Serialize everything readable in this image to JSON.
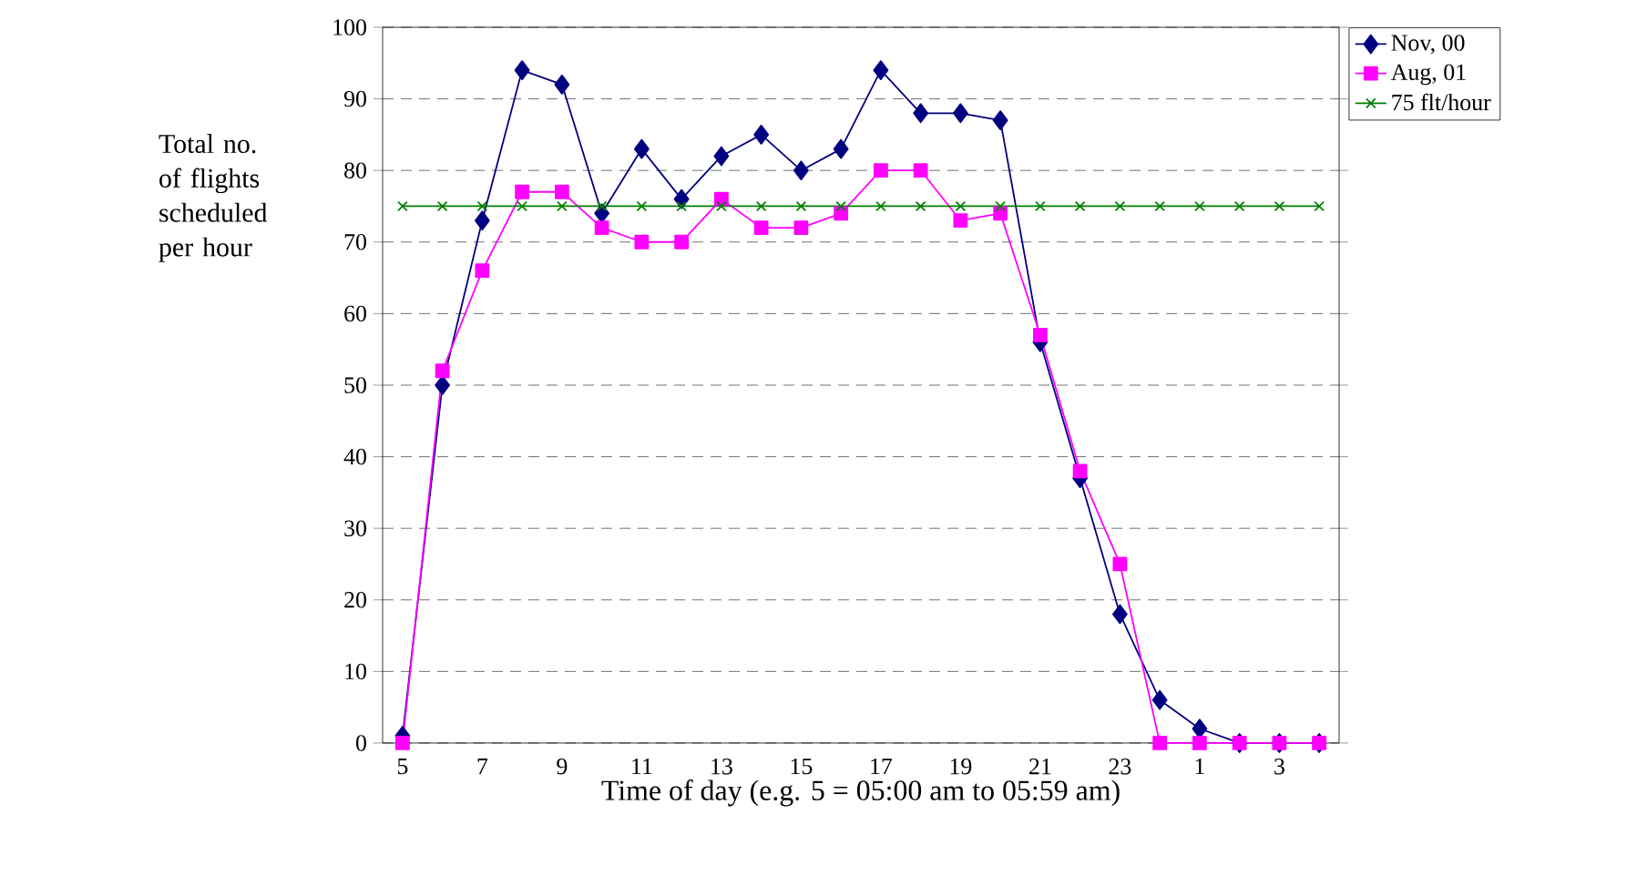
{
  "chart_data": {
    "type": "line",
    "xlabel": "Time of day (e.g. 5 = 05:00 am to 05:59 am)",
    "ylabel": "Total no. of flights scheduled per hour",
    "categories": [
      "5",
      null,
      "7",
      null,
      "9",
      null,
      "11",
      null,
      "13",
      null,
      "15",
      null,
      "17",
      null,
      "19",
      null,
      "21",
      null,
      "23",
      null,
      "1",
      null,
      "3",
      null
    ],
    "series": [
      {
        "name": "Nov, 00",
        "color": "#000080",
        "marker": "diamond",
        "values": [
          1,
          50,
          73,
          94,
          92,
          74,
          83,
          76,
          82,
          85,
          80,
          83,
          94,
          88,
          88,
          87,
          56,
          37,
          18,
          6,
          2,
          0,
          0,
          0
        ]
      },
      {
        "name": "Aug, 01",
        "color": "#ff00ff",
        "marker": "square",
        "values": [
          0,
          52,
          66,
          77,
          77,
          72,
          70,
          70,
          76,
          72,
          72,
          74,
          80,
          80,
          73,
          74,
          57,
          38,
          25,
          0,
          0,
          0,
          0,
          0
        ]
      },
      {
        "name": "75 flt/hour",
        "color": "#008000",
        "marker": "cross",
        "values": [
          75,
          75,
          75,
          75,
          75,
          75,
          75,
          75,
          75,
          75,
          75,
          75,
          75,
          75,
          75,
          75,
          75,
          75,
          75,
          75,
          75,
          75,
          75,
          75
        ]
      }
    ],
    "ylim": [
      0,
      100
    ],
    "yticks": [
      0,
      10,
      20,
      30,
      40,
      50,
      60,
      70,
      80,
      90,
      100
    ],
    "grid": "y",
    "legend": "right",
    "line_style": "solid"
  }
}
